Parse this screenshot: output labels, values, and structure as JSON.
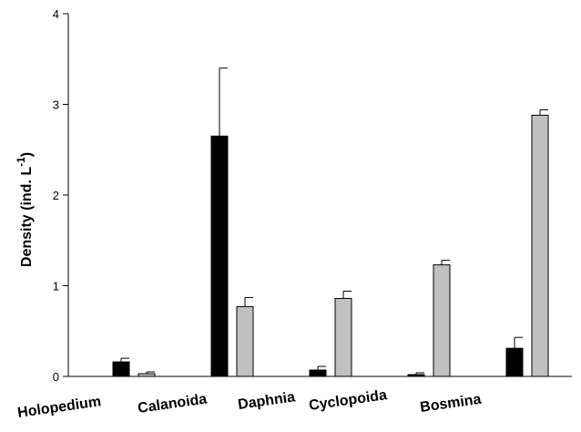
{
  "chart_data": {
    "type": "bar",
    "categories": [
      "Holopedium",
      "Calanoida",
      "Daphnia",
      "Cyclopoida",
      "Bosmina"
    ],
    "series": [
      {
        "color": "#000000",
        "values": [
          0.16,
          2.65,
          0.07,
          0.02,
          0.31
        ],
        "errors": [
          0.04,
          0.75,
          0.04,
          0.02,
          0.12
        ]
      },
      {
        "color": "#c0c0c0",
        "values": [
          0.03,
          0.77,
          0.86,
          1.23,
          2.88
        ],
        "errors": [
          0.02,
          0.1,
          0.08,
          0.05,
          0.06
        ]
      }
    ],
    "ylabel": "Density (ind. L",
    "ylabel_superscript": "-1",
    "ylabel_suffix": ")",
    "ylim": [
      0,
      4
    ],
    "yticks": [
      "0",
      "1",
      "2",
      "3",
      "4"
    ],
    "grid": false,
    "legend": "none"
  }
}
